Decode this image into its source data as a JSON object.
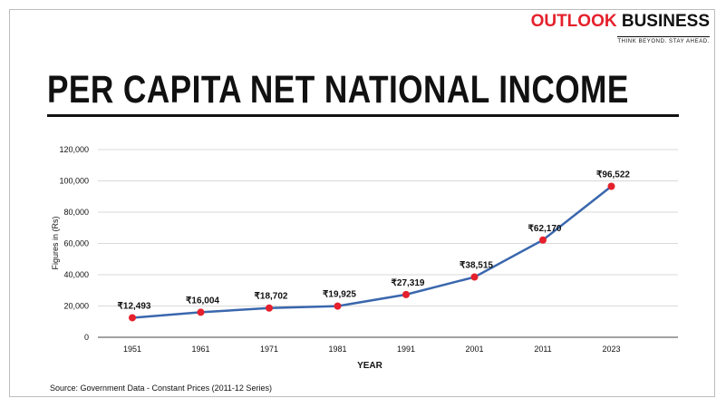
{
  "brand": {
    "name_part1": "OUTLOOK",
    "name_part2": "BUSINESS",
    "tagline": "THINK BEYOND. STAY AHEAD."
  },
  "header": {
    "title": "PER CAPITA NET NATIONAL INCOME"
  },
  "source": "Source: Government Data - Constant Prices (2011-12 Series)",
  "colors": {
    "line": "#3a67ad",
    "marker": "#e4212c",
    "brand_accent": "#e4212c",
    "grid": "#cccccc"
  },
  "chart_data": {
    "type": "line",
    "xlabel": "YEAR",
    "ylabel": "Figures in (Rs)",
    "categories": [
      "1951",
      "1961",
      "1971",
      "1981",
      "1991",
      "2001",
      "2011",
      "2023"
    ],
    "values": [
      12493,
      16004,
      18702,
      19925,
      27319,
      38515,
      62170,
      96522
    ],
    "data_labels": [
      "₹12,493",
      "₹16,004",
      "₹18,702",
      "₹19,925",
      "₹27,319",
      "₹38,515",
      "₹62,170",
      "₹96,522"
    ],
    "ylim": [
      0,
      120000
    ],
    "y_ticks": [
      0,
      20000,
      40000,
      60000,
      80000,
      100000,
      120000
    ],
    "y_tick_labels": [
      "0",
      "20,000",
      "40,000",
      "60,000",
      "80,000",
      "100,000",
      "120,000"
    ],
    "grid": "horizontal",
    "legend": "none"
  }
}
